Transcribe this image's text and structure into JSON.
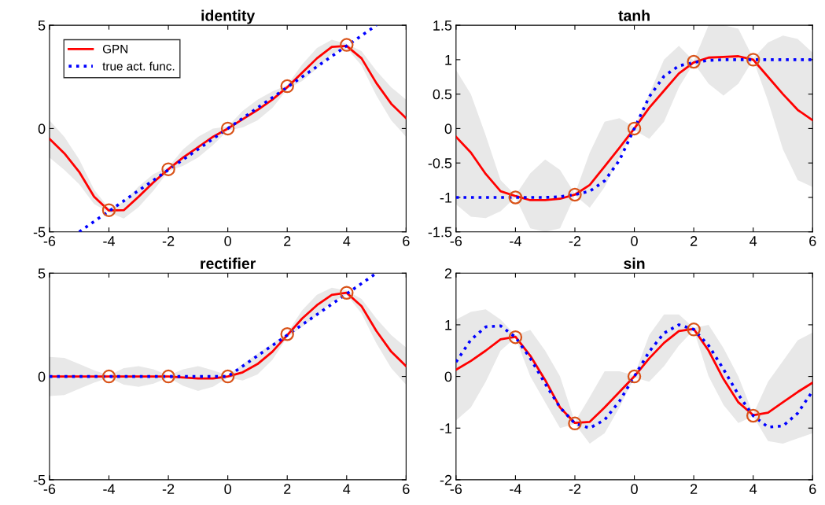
{
  "chart_data": [
    {
      "type": "line",
      "title": "identity",
      "x": [
        -6,
        -5.5,
        -5,
        -4.5,
        -4,
        -3.5,
        -3,
        -2.5,
        -2,
        -1.5,
        -1,
        -0.5,
        0,
        0.5,
        1,
        1.5,
        2,
        2.5,
        3,
        3.5,
        4,
        4.5,
        5,
        5.5,
        6
      ],
      "xlim": [
        -6,
        6
      ],
      "xticks": [
        -6,
        -4,
        -2,
        0,
        2,
        4,
        6
      ],
      "ylim": [
        -5,
        5
      ],
      "yticks": [
        -5,
        0,
        5
      ],
      "grid": false,
      "legend": "top left",
      "series": [
        {
          "name": "GPN",
          "color": "#ff0000",
          "line_style": "solid",
          "values": [
            -0.5,
            -1.2,
            -2.1,
            -3.3,
            -3.97,
            -3.95,
            -3.3,
            -2.6,
            -1.97,
            -1.4,
            -0.9,
            -0.4,
            0,
            0.45,
            0.9,
            1.4,
            2.0,
            2.7,
            3.4,
            3.95,
            4.0,
            3.4,
            2.2,
            1.2,
            0.5
          ],
          "lower": [
            -1.4,
            -2.0,
            -2.7,
            -3.65,
            -4.07,
            -4.35,
            -3.8,
            -3.0,
            -2.07,
            -1.8,
            -1.4,
            -0.8,
            -0.1,
            0.05,
            0.4,
            1.0,
            1.9,
            2.3,
            2.9,
            3.6,
            3.9,
            3.05,
            1.6,
            0.4,
            -0.4
          ],
          "upper": [
            0.4,
            -0.4,
            -1.5,
            -2.95,
            -3.87,
            -3.55,
            -2.8,
            -2.2,
            -1.87,
            -1.0,
            -0.4,
            0.0,
            0.1,
            0.85,
            1.4,
            1.8,
            2.1,
            3.1,
            3.9,
            4.3,
            4.1,
            3.75,
            2.8,
            2.0,
            1.4
          ]
        },
        {
          "name": "true act. func.",
          "color": "#0000ff",
          "line_style": "dotted",
          "x": [
            -5,
            5
          ],
          "values": [
            -5,
            5
          ]
        },
        {
          "type": "scatter",
          "color": "#d95319",
          "marker": "circle",
          "x": [
            -4,
            -2,
            0,
            2,
            4
          ],
          "values": [
            -3.95,
            -1.97,
            0,
            2.05,
            4.05
          ]
        }
      ]
    },
    {
      "type": "line",
      "title": "tanh",
      "x": [
        -6,
        -5.5,
        -5,
        -4.5,
        -4,
        -3.5,
        -3,
        -2.5,
        -2,
        -1.5,
        -1,
        -0.5,
        0,
        0.5,
        1,
        1.5,
        2,
        2.5,
        3,
        3.5,
        4,
        4.5,
        5,
        5.5,
        6
      ],
      "xlim": [
        -6,
        6
      ],
      "xticks": [
        -6,
        -4,
        -2,
        0,
        2,
        4,
        6
      ],
      "ylim": [
        -1.5,
        1.5
      ],
      "yticks": [
        -1.5,
        -1,
        -0.5,
        0,
        0.5,
        1,
        1.5
      ],
      "grid": false,
      "series": [
        {
          "color": "#ff0000",
          "line_style": "solid",
          "values": [
            -0.12,
            -0.35,
            -0.66,
            -0.91,
            -0.98,
            -1.04,
            -1.04,
            -1.02,
            -0.96,
            -0.82,
            -0.55,
            -0.28,
            0,
            0.3,
            0.55,
            0.8,
            0.96,
            1.03,
            1.04,
            1.05,
            1.0,
            0.75,
            0.5,
            0.27,
            0.12
          ],
          "lower": [
            -1.1,
            -1.28,
            -1.3,
            -1.2,
            -1.0,
            -1.45,
            -1.5,
            -1.45,
            -0.97,
            -1.15,
            -0.85,
            -0.42,
            -0.02,
            -0.15,
            0.1,
            0.6,
            0.95,
            0.65,
            0.48,
            0.65,
            1.0,
            0.4,
            -0.3,
            -0.75,
            -0.85
          ],
          "upper": [
            0.85,
            0.5,
            -0.1,
            -0.75,
            -0.97,
            -0.65,
            -0.45,
            -0.6,
            -0.95,
            -0.35,
            0.1,
            0.15,
            0.02,
            0.5,
            1.0,
            1.2,
            0.98,
            1.5,
            1.5,
            1.45,
            1.02,
            1.25,
            1.35,
            1.3,
            1.1
          ]
        },
        {
          "color": "#0000ff",
          "line_style": "dotted",
          "values": [
            -1,
            -1,
            -1,
            -1,
            -1,
            -1,
            -1,
            -0.99,
            -0.96,
            -0.91,
            -0.76,
            -0.46,
            0,
            0.46,
            0.76,
            0.91,
            0.96,
            0.99,
            1,
            1,
            1,
            1,
            1,
            1,
            1
          ]
        },
        {
          "type": "scatter",
          "color": "#d95319",
          "marker": "circle",
          "x": [
            -4,
            -2,
            0,
            2,
            4
          ],
          "values": [
            -1.0,
            -0.96,
            0,
            0.97,
            1.0
          ]
        }
      ]
    },
    {
      "type": "line",
      "title": "rectifier",
      "x": [
        -6,
        -5.5,
        -5,
        -4.5,
        -4,
        -3.5,
        -3,
        -2.5,
        -2,
        -1.5,
        -1,
        -0.5,
        0,
        0.5,
        1,
        1.5,
        2,
        2.5,
        3,
        3.5,
        4,
        4.5,
        5,
        5.5,
        6
      ],
      "xlim": [
        -6,
        6
      ],
      "xticks": [
        -6,
        -4,
        -2,
        0,
        2,
        4,
        6
      ],
      "ylim": [
        -5,
        5
      ],
      "yticks": [
        -5,
        0,
        5
      ],
      "grid": false,
      "series": [
        {
          "color": "#ff0000",
          "line_style": "solid",
          "values": [
            0,
            0,
            0,
            0,
            0,
            0,
            0,
            0,
            0,
            -0.05,
            -0.1,
            -0.1,
            0,
            0.2,
            0.6,
            1.2,
            2.0,
            2.8,
            3.45,
            3.95,
            4.05,
            3.4,
            2.2,
            1.2,
            0.5
          ],
          "lower": [
            -0.95,
            -0.9,
            -0.6,
            -0.3,
            -0.05,
            -0.4,
            -0.5,
            -0.35,
            -0.05,
            -0.45,
            -0.7,
            -0.5,
            -0.05,
            -0.2,
            0.1,
            0.8,
            1.9,
            2.4,
            2.95,
            3.6,
            3.95,
            3.05,
            1.6,
            0.4,
            -0.4
          ],
          "upper": [
            0.95,
            0.9,
            0.6,
            0.3,
            0.05,
            0.4,
            0.5,
            0.35,
            0.05,
            0.35,
            0.5,
            0.3,
            0.05,
            0.6,
            1.1,
            1.6,
            2.1,
            3.2,
            3.95,
            4.3,
            4.15,
            3.75,
            2.8,
            2.0,
            1.4
          ]
        },
        {
          "color": "#0000ff",
          "line_style": "dotted",
          "x": [
            -6,
            0,
            5
          ],
          "values": [
            0,
            0,
            5
          ]
        },
        {
          "type": "scatter",
          "color": "#d95319",
          "marker": "circle",
          "x": [
            -4,
            -2,
            0,
            2,
            4
          ],
          "values": [
            0,
            0,
            0,
            2.05,
            4.05
          ]
        }
      ]
    },
    {
      "type": "line",
      "title": "sin",
      "x": [
        -6,
        -5.5,
        -5,
        -4.5,
        -4,
        -3.5,
        -3,
        -2.5,
        -2,
        -1.5,
        -1,
        -0.5,
        0,
        0.5,
        1,
        1.5,
        2,
        2.5,
        3,
        3.5,
        4,
        4.5,
        5,
        5.5,
        6
      ],
      "xlim": [
        -6,
        6
      ],
      "xticks": [
        -6,
        -4,
        -2,
        0,
        2,
        4,
        6
      ],
      "ylim": [
        -2,
        2
      ],
      "yticks": [
        -2,
        -1,
        0,
        1,
        2
      ],
      "grid": false,
      "series": [
        {
          "color": "#ff0000",
          "line_style": "solid",
          "values": [
            0.13,
            0.3,
            0.5,
            0.72,
            0.77,
            0.4,
            -0.07,
            -0.6,
            -0.9,
            -0.88,
            -0.6,
            -0.3,
            0,
            0.35,
            0.65,
            0.88,
            0.92,
            0.5,
            -0.05,
            -0.5,
            -0.75,
            -0.7,
            -0.5,
            -0.3,
            -0.12
          ],
          "lower": [
            -0.85,
            -0.6,
            -0.1,
            0.5,
            0.75,
            0.0,
            -0.5,
            -1.0,
            -0.92,
            -1.3,
            -1.1,
            -0.6,
            -0.02,
            -0.1,
            0.2,
            0.6,
            0.9,
            0.0,
            -0.55,
            -0.9,
            -0.77,
            -1.25,
            -1.3,
            -1.2,
            -1.1
          ],
          "upper": [
            1.1,
            1.25,
            1.3,
            1.1,
            0.8,
            0.9,
            0.5,
            0.0,
            -0.88,
            -0.4,
            0.1,
            0.1,
            0.02,
            0.8,
            1.2,
            1.2,
            0.94,
            1.0,
            0.55,
            0.0,
            -0.73,
            -0.1,
            0.3,
            0.7,
            0.85
          ]
        },
        {
          "color": "#0000ff",
          "line_style": "dotted",
          "values": [
            0.28,
            0.71,
            0.96,
            0.98,
            0.76,
            0.35,
            -0.14,
            -0.6,
            -0.91,
            -1.0,
            -0.84,
            -0.48,
            0,
            0.48,
            0.84,
            1.0,
            0.91,
            0.6,
            0.14,
            -0.35,
            -0.76,
            -0.98,
            -0.96,
            -0.71,
            -0.28
          ]
        },
        {
          "type": "scatter",
          "color": "#d95319",
          "marker": "circle",
          "x": [
            -4,
            -2,
            0,
            2,
            4
          ],
          "values": [
            0.76,
            -0.91,
            0,
            0.91,
            -0.76
          ]
        }
      ]
    }
  ]
}
